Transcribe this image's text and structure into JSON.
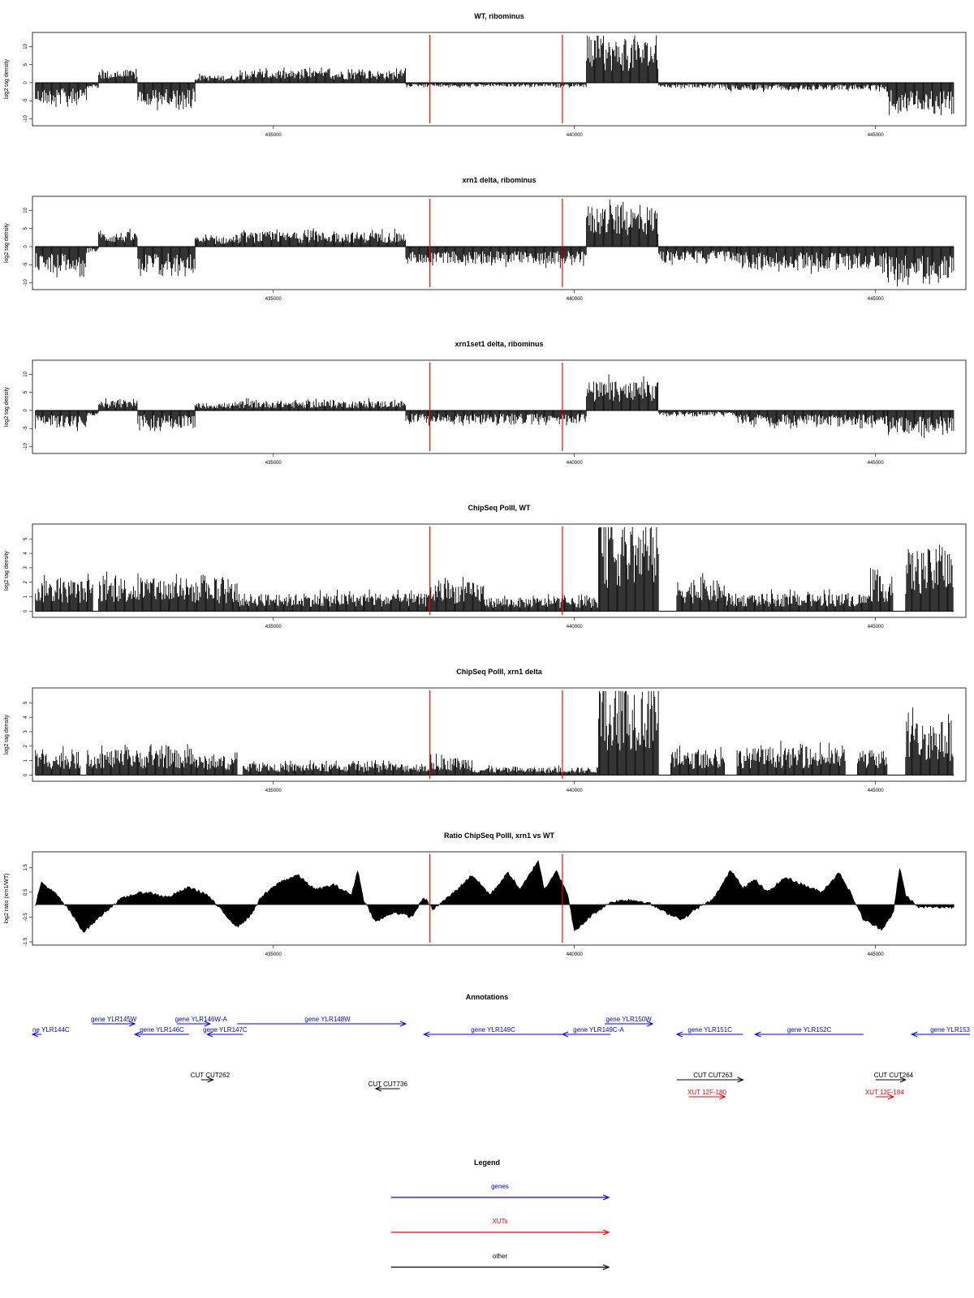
{
  "figure": {
    "x_axis": {
      "range": [
        431000,
        446500
      ],
      "ticks": [
        435000,
        440000,
        445000
      ]
    },
    "marker_lines": {
      "color": "#ff0000",
      "positions": [
        437600,
        439800
      ]
    }
  },
  "chart_data": [
    {
      "type": "bar",
      "title": "WT, ribominus",
      "ylabel": "log2 tag density",
      "ylim": [
        -11,
        13
      ],
      "yticks": [
        -10,
        -5,
        0,
        5,
        10
      ],
      "markers": [
        437600,
        439800
      ],
      "segments": [
        {
          "from": 431050,
          "to": 431900,
          "value": -4.5
        },
        {
          "from": 431900,
          "to": 432100,
          "value": -1
        },
        {
          "from": 432100,
          "to": 432750,
          "value": 2.5
        },
        {
          "from": 432750,
          "to": 433700,
          "value": -4.5
        },
        {
          "from": 433700,
          "to": 434450,
          "value": 1.5
        },
        {
          "from": 434450,
          "to": 437200,
          "value": 2.5
        },
        {
          "from": 437200,
          "to": 440200,
          "value": -0.8
        },
        {
          "from": 440200,
          "to": 441400,
          "value": 9
        },
        {
          "from": 441400,
          "to": 442500,
          "value": -1
        },
        {
          "from": 442500,
          "to": 445200,
          "value": -1.5
        },
        {
          "from": 445200,
          "to": 446300,
          "value": -5.5
        }
      ]
    },
    {
      "type": "bar",
      "title": "xrn1 delta, ribominus",
      "ylabel": "log2 tag density",
      "ylim": [
        -11,
        13
      ],
      "yticks": [
        -10,
        -5,
        0,
        5,
        10
      ],
      "markers": [
        437600,
        439800
      ],
      "segments": [
        {
          "from": 431050,
          "to": 431900,
          "value": -5
        },
        {
          "from": 431900,
          "to": 432100,
          "value": -1
        },
        {
          "from": 432100,
          "to": 432750,
          "value": 3
        },
        {
          "from": 432750,
          "to": 433700,
          "value": -5
        },
        {
          "from": 433700,
          "to": 434450,
          "value": 2
        },
        {
          "from": 434450,
          "to": 437200,
          "value": 3
        },
        {
          "from": 437200,
          "to": 440200,
          "value": -3.5
        },
        {
          "from": 440200,
          "to": 441400,
          "value": 8.5
        },
        {
          "from": 441400,
          "to": 442700,
          "value": -3
        },
        {
          "from": 442700,
          "to": 445200,
          "value": -4.5
        },
        {
          "from": 445200,
          "to": 446300,
          "value": -7
        }
      ]
    },
    {
      "type": "bar",
      "title": "xrn1set1 delta, ribominus",
      "ylabel": "log2 tag density",
      "ylim": [
        -11,
        13
      ],
      "yticks": [
        -10,
        -5,
        0,
        5,
        10
      ],
      "markers": [
        437600,
        439800
      ],
      "segments": [
        {
          "from": 431050,
          "to": 431900,
          "value": -3.5
        },
        {
          "from": 431900,
          "to": 432100,
          "value": -1
        },
        {
          "from": 432100,
          "to": 432750,
          "value": 2
        },
        {
          "from": 432750,
          "to": 433700,
          "value": -3.5
        },
        {
          "from": 433700,
          "to": 434450,
          "value": 1.5
        },
        {
          "from": 434450,
          "to": 437200,
          "value": 2
        },
        {
          "from": 437200,
          "to": 440200,
          "value": -2.5
        },
        {
          "from": 440200,
          "to": 441400,
          "value": 6
        },
        {
          "from": 441400,
          "to": 442700,
          "value": -1
        },
        {
          "from": 442700,
          "to": 445200,
          "value": -3
        },
        {
          "from": 445200,
          "to": 446300,
          "value": -4.5
        }
      ]
    },
    {
      "type": "bar",
      "title": "ChipSeq PolII, WT",
      "ylabel": "log2 tag density",
      "ylim": [
        -0.2,
        5.8
      ],
      "yticks": [
        0,
        1,
        2,
        3,
        4,
        5
      ],
      "markers": [
        437600,
        439800
      ],
      "segments": [
        {
          "from": 431050,
          "to": 432000,
          "value": 1.6
        },
        {
          "from": 432100,
          "to": 433700,
          "value": 1.7
        },
        {
          "from": 433700,
          "to": 434400,
          "value": 1.5
        },
        {
          "from": 434400,
          "to": 437600,
          "value": 0.9
        },
        {
          "from": 437600,
          "to": 438500,
          "value": 1.5
        },
        {
          "from": 438500,
          "to": 440400,
          "value": 0.7
        },
        {
          "from": 440400,
          "to": 441400,
          "value": 4.6
        },
        {
          "from": 441700,
          "to": 442500,
          "value": 1.6
        },
        {
          "from": 442500,
          "to": 444900,
          "value": 0.9
        },
        {
          "from": 444900,
          "to": 445300,
          "value": 1.8
        },
        {
          "from": 445500,
          "to": 446300,
          "value": 3.2
        }
      ]
    },
    {
      "type": "bar",
      "title": "ChipSeq PolII, xrn1 delta",
      "ylabel": "log2 tag density",
      "ylim": [
        -0.2,
        5.8
      ],
      "yticks": [
        0,
        1,
        2,
        3,
        4,
        5
      ],
      "markers": [
        437600,
        439800
      ],
      "segments": [
        {
          "from": 431050,
          "to": 431800,
          "value": 1.2
        },
        {
          "from": 431900,
          "to": 433700,
          "value": 1.3
        },
        {
          "from": 433700,
          "to": 434400,
          "value": 1
        },
        {
          "from": 434500,
          "to": 437600,
          "value": 0.6
        },
        {
          "from": 437600,
          "to": 438300,
          "value": 0.9
        },
        {
          "from": 438300,
          "to": 440400,
          "value": 0.4
        },
        {
          "from": 440400,
          "to": 441400,
          "value": 4.8
        },
        {
          "from": 441600,
          "to": 442500,
          "value": 1.2
        },
        {
          "from": 442700,
          "to": 444500,
          "value": 1.4
        },
        {
          "from": 444700,
          "to": 445200,
          "value": 1.3
        },
        {
          "from": 445500,
          "to": 446300,
          "value": 2.8
        }
      ]
    },
    {
      "type": "area",
      "title": "Ratio ChipSeq PolII, xrn1 vs WT",
      "ylabel": "log2 ratio (xrn1/WT)",
      "ylim": [
        -1.5,
        2
      ],
      "yticks": [
        -1.5,
        -0.5,
        0.5,
        1.5
      ],
      "baseline": 0,
      "markers": [
        437600,
        439800
      ],
      "x": [
        431050,
        431150,
        431400,
        431600,
        431850,
        432200,
        432450,
        432650,
        432900,
        433250,
        433600,
        433900,
        434200,
        434400,
        434600,
        434800,
        435100,
        435400,
        435700,
        436000,
        436300,
        436400,
        436500,
        436700,
        437000,
        437300,
        437500,
        437650,
        438000,
        438300,
        438600,
        438900,
        439100,
        439400,
        439500,
        439700,
        439900,
        440000,
        440300,
        440600,
        440900,
        441200,
        441500,
        441800,
        442000,
        442300,
        442600,
        442800,
        443000,
        443200,
        443500,
        443800,
        444100,
        444400,
        444600,
        444800,
        445100,
        445300,
        445400,
        445500,
        445700,
        446000,
        446300
      ],
      "y": [
        0,
        0.9,
        0.4,
        -0.2,
        -1.1,
        -0.3,
        0.2,
        0.4,
        0.5,
        0.3,
        0.7,
        0.4,
        -0.4,
        -0.9,
        -0.5,
        0.3,
        0.9,
        1.2,
        0.6,
        0.8,
        0.4,
        1.4,
        0.2,
        -0.7,
        -0.3,
        -0.5,
        0.3,
        -0.2,
        0.5,
        1.2,
        0.4,
        1.3,
        0.6,
        1.8,
        0.6,
        1.4,
        0.3,
        -1.1,
        -0.4,
        0.1,
        0.2,
        0.1,
        -0.3,
        -0.6,
        -0.2,
        0.2,
        1.4,
        0.7,
        1.0,
        0.5,
        1.1,
        0.8,
        0.5,
        1.3,
        0.4,
        -0.6,
        -1.0,
        -0.3,
        1.5,
        0.4,
        -0.1,
        -0.1,
        -0.1
      ]
    }
  ],
  "annotations": {
    "title": "Annotations",
    "colors": {
      "genes": "#0000ff",
      "XUTs": "#ff0000",
      "other": "#000000"
    },
    "features": [
      {
        "label": "ne YLR144C",
        "category": "genes",
        "start": 431000,
        "end": 431150,
        "strand": "-",
        "row": 1,
        "label_x": 431000
      },
      {
        "label": "gene YLR145W",
        "category": "genes",
        "start": 432000,
        "end": 432700,
        "strand": "+",
        "row": 0,
        "label_x": 432350
      },
      {
        "label": "gene YLR146C",
        "category": "genes",
        "start": 432700,
        "end": 433600,
        "strand": "-",
        "row": 1,
        "label_x": 433150
      },
      {
        "label": "gene YLR146W-A",
        "category": "genes",
        "start": 433400,
        "end": 433950,
        "strand": "+",
        "row": 0,
        "label_x": 433800
      },
      {
        "label": "gene YLR147C",
        "category": "genes",
        "start": 433900,
        "end": 434500,
        "strand": "-",
        "row": 1,
        "label_x": 434200
      },
      {
        "label": "gene YLR148W",
        "category": "genes",
        "start": 434400,
        "end": 437200,
        "strand": "+",
        "row": 0,
        "label_x": 435900
      },
      {
        "label": "gene YLR149C",
        "category": "genes",
        "start": 437500,
        "end": 439800,
        "strand": "-",
        "row": 1,
        "label_x": 438650
      },
      {
        "label": "gene YLR149C-A",
        "category": "genes",
        "start": 439800,
        "end": 440600,
        "strand": "-",
        "row": 1,
        "label_x": 440400
      },
      {
        "label": "gene YLR150W",
        "category": "genes",
        "start": 440500,
        "end": 441300,
        "strand": "+",
        "row": 0,
        "label_x": 440900
      },
      {
        "label": "gene YLR151C",
        "category": "genes",
        "start": 441700,
        "end": 442800,
        "strand": "-",
        "row": 1,
        "label_x": 442250
      },
      {
        "label": "gene YLR152C",
        "category": "genes",
        "start": 443000,
        "end": 444800,
        "strand": "-",
        "row": 1,
        "label_x": 443900
      },
      {
        "label": "gene YLR153",
        "category": "genes",
        "start": 445600,
        "end": 446600,
        "strand": "-",
        "row": 1,
        "label_x": 446450
      },
      {
        "label": "CUT CUT262",
        "category": "other",
        "start": 433800,
        "end": 434000,
        "strand": "+",
        "row": 2,
        "label_x": 433950
      },
      {
        "label": "CUT CUT736",
        "category": "other",
        "start": 436700,
        "end": 437100,
        "strand": "-",
        "row": 3,
        "label_x": 436900
      },
      {
        "label": "CUT CUT263",
        "category": "other",
        "start": 441700,
        "end": 442800,
        "strand": "+",
        "row": 2,
        "label_x": 442300
      },
      {
        "label": "CUT CUT264",
        "category": "other",
        "start": 445000,
        "end": 445500,
        "strand": "+",
        "row": 2,
        "label_x": 445300
      },
      {
        "label": "XUT 12F-180",
        "category": "XUTs",
        "start": 441900,
        "end": 442500,
        "strand": "+",
        "row": 4,
        "label_x": 442200
      },
      {
        "label": "XUT 12F-184",
        "category": "XUTs",
        "start": 445000,
        "end": 445300,
        "strand": "+",
        "row": 4,
        "label_x": 445150
      }
    ]
  },
  "legend": {
    "title": "Legend",
    "entries": [
      {
        "label": "genes",
        "color": "#0000ff"
      },
      {
        "label": "XUTs",
        "color": "#ff0000"
      },
      {
        "label": "other",
        "color": "#000000"
      }
    ]
  }
}
